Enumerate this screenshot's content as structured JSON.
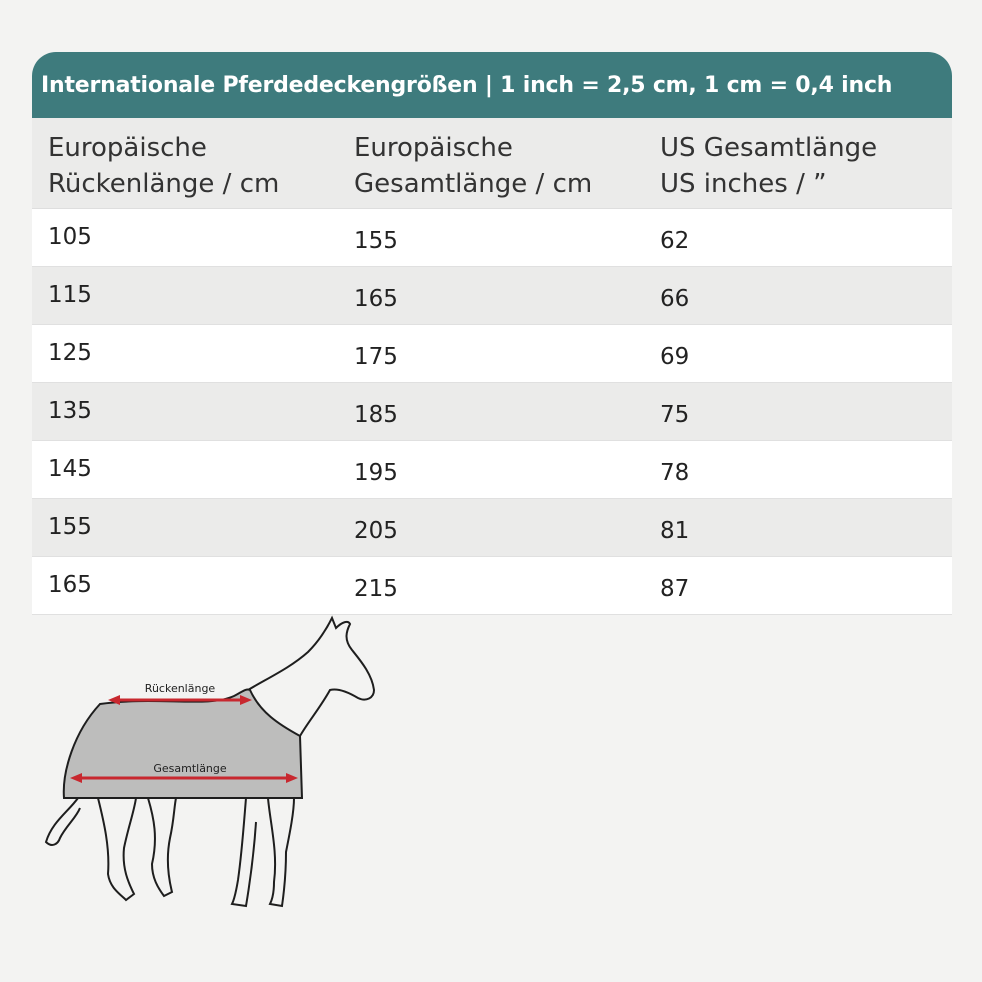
{
  "title": "Internationale Pferdedeckengrößen | 1 inch = 2,5 cm, 1 cm = 0,4 inch",
  "headers": [
    {
      "line1": "Europäische",
      "line2": "Rückenlänge / cm"
    },
    {
      "line1": "Europäische",
      "line2": "Gesamtlänge / cm"
    },
    {
      "line1": "US Gesamtlänge",
      "line2": "US inches / ”"
    }
  ],
  "rows": [
    [
      "105",
      "155",
      "62"
    ],
    [
      "115",
      "165",
      "66"
    ],
    [
      "125",
      "175",
      "69"
    ],
    [
      "135",
      "185",
      "75"
    ],
    [
      "145",
      "195",
      "78"
    ],
    [
      "155",
      "205",
      "81"
    ],
    [
      "165",
      "215",
      "87"
    ]
  ],
  "illustration": {
    "back_length_label": "Rückenlänge",
    "total_length_label": "Gesamtlänge"
  },
  "colors": {
    "title_bar": "#3e7b7d",
    "row_alt": "#ebebea",
    "arrow": "#c8282f",
    "blanket": "#bdbdbc"
  }
}
